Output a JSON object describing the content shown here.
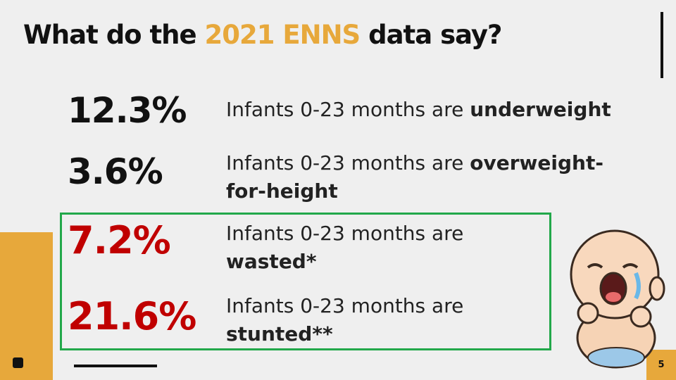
{
  "header": {
    "title_before": "What do the ",
    "title_highlight": "2021 ENNS",
    "title_after": " data say?"
  },
  "stats": [
    {
      "value": "12.3%",
      "text": "Infants 0-23 months are ",
      "bold": "underweight"
    },
    {
      "value": "3.6%",
      "text": "Infants 0-23 months are ",
      "bold": "overweight-for-height"
    },
    {
      "value": "7.2%",
      "text": "Infants 0-23 months are ",
      "bold": "wasted*"
    },
    {
      "value": "21.6%",
      "text": "Infants 0-23 months are ",
      "bold": "stunted**"
    }
  ],
  "footer": {
    "page_number": "5"
  }
}
